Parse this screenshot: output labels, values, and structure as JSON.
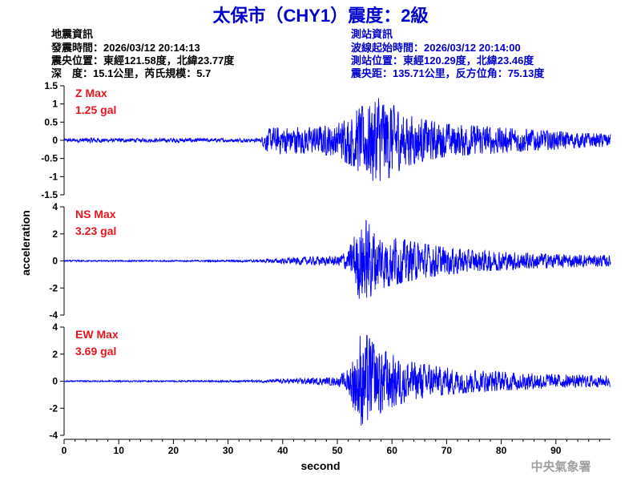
{
  "header": {
    "title": "太保市（CHY1）震度：2級",
    "quake": {
      "heading": "地震資訊",
      "origin_time": "發震時間：2026/03/12 20:14:13",
      "epicenter": "震央位置：東經121.58度，北緯23.77度",
      "depth_mag": "深　度：15.1公里，芮氏規模：5.7"
    },
    "station": {
      "heading": "測站資訊",
      "wave_start": "波線起始時間：2026/03/12 20:14:00",
      "location": "測站位置：東經120.29度，北緯23.46度",
      "distance": "震央距：135.71公里，反方位角：75.13度"
    }
  },
  "footer": {
    "agency": "中央氣象署"
  },
  "colors": {
    "trace": "#0000ff",
    "max_label": "#e8141e",
    "title": "#0000cc",
    "station_info": "#0000cc",
    "watermark": "#a0a0a0"
  },
  "chart_data": [
    {
      "type": "line",
      "name": "Z",
      "max_label": "Z Max",
      "max_value": "1.25 gal",
      "ylim": [
        -1.5,
        1.5
      ],
      "yticks": [
        -1.5,
        -1,
        -0.5,
        0,
        0.5,
        1,
        1.5
      ],
      "ytick_labels": [
        "-1.5",
        "-1",
        "-0.5",
        "0",
        "0.5",
        "1",
        "1.5"
      ],
      "xlim": [
        0,
        100
      ],
      "envelope": {
        "t": [
          0,
          2,
          5,
          8,
          15,
          22,
          25,
          30,
          36,
          37,
          40,
          45,
          50,
          53,
          55,
          57,
          60,
          62,
          65,
          70,
          75,
          80,
          85,
          90,
          95,
          100
        ],
        "amp": [
          0.04,
          0.05,
          0.07,
          0.05,
          0.05,
          0.06,
          0.05,
          0.05,
          0.05,
          0.3,
          0.38,
          0.35,
          0.45,
          0.75,
          1.0,
          1.2,
          1.0,
          0.75,
          0.6,
          0.45,
          0.4,
          0.35,
          0.3,
          0.25,
          0.2,
          0.18
        ]
      }
    },
    {
      "type": "line",
      "name": "NS",
      "max_label": "NS Max",
      "max_value": "3.23 gal",
      "ylim": [
        -4,
        4
      ],
      "yticks": [
        -4,
        -2,
        0,
        2,
        4
      ],
      "ytick_labels": [
        "-4",
        "-2",
        "0",
        "2",
        "4"
      ],
      "xlim": [
        0,
        100
      ],
      "envelope": {
        "t": [
          0,
          10,
          20,
          30,
          36,
          40,
          45,
          50,
          52,
          54,
          55,
          57,
          60,
          62,
          65,
          70,
          75,
          80,
          85,
          90,
          95,
          100
        ],
        "amp": [
          0.05,
          0.05,
          0.05,
          0.06,
          0.1,
          0.2,
          0.3,
          0.35,
          0.8,
          2.8,
          3.1,
          2.2,
          1.8,
          1.6,
          1.3,
          1.0,
          0.8,
          0.7,
          0.6,
          0.5,
          0.45,
          0.4
        ]
      }
    },
    {
      "type": "line",
      "name": "EW",
      "max_label": "EW Max",
      "max_value": "3.69 gal",
      "ylim": [
        -4,
        4
      ],
      "yticks": [
        -4,
        -2,
        0,
        2,
        4
      ],
      "ytick_labels": [
        "-4",
        "-2",
        "0",
        "2",
        "4"
      ],
      "xlim": [
        0,
        100
      ],
      "envelope": {
        "t": [
          0,
          10,
          20,
          30,
          36,
          40,
          45,
          50,
          52,
          54,
          55,
          57,
          60,
          62,
          65,
          70,
          75,
          80,
          85,
          90,
          95,
          100
        ],
        "amp": [
          0.05,
          0.05,
          0.05,
          0.06,
          0.08,
          0.15,
          0.25,
          0.3,
          0.9,
          3.3,
          3.6,
          2.6,
          2.0,
          1.6,
          1.3,
          1.0,
          0.8,
          0.7,
          0.6,
          0.5,
          0.45,
          0.4
        ]
      }
    }
  ],
  "axes": {
    "xlabel": "second",
    "ylabel": "acceleration",
    "xticks": [
      0,
      10,
      20,
      30,
      40,
      50,
      60,
      70,
      80,
      90
    ],
    "xtick_labels": [
      "0",
      "10",
      "20",
      "30",
      "40",
      "50",
      "60",
      "70",
      "80",
      "90"
    ]
  }
}
